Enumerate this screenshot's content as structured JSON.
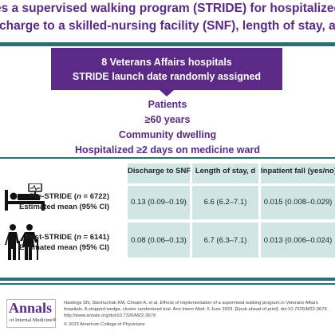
{
  "title": {
    "line1": "es a supervised walking program (STRIDE) for hospitalized patients redu",
    "line2": "charge to a skilled-nursing facility (SNF), length of stay, and in-hospital fal"
  },
  "launch_box": {
    "line1": "8 Veterans Affairs hospitals",
    "line2": "STRIDE launch date randomly assigned"
  },
  "patients": {
    "heading": "Patients",
    "criteria": [
      "≥60 years",
      "Community dwelling",
      "Hospitalized ≥2 days on medicine ward"
    ]
  },
  "table": {
    "columns": [
      "Discharge to SNF",
      "Length of stay, d",
      "Inpatient fall (yes/no)"
    ],
    "rows": [
      {
        "label_prefix": "Pre-STRIDE (",
        "label_n": "n",
        "label_suffix": " = 6722)",
        "sublabel": "Estimated mean (95% CI)",
        "icon": "hospital-bed-icon",
        "values": [
          "0.13 (0.09–0.19)",
          "6.6 (6.2–7.1)",
          "0.015 (0.008–0.029)"
        ]
      },
      {
        "label_prefix": "Post-STRIDE (",
        "label_n": "n",
        "label_suffix": " = 6141)",
        "sublabel": "Estimated mean (95% CI)",
        "icon": "walking-people-icon",
        "values": [
          "0.08 (0.06–0.13)",
          "6.7 (6.3–7.1)",
          "0.013 (0.006–0.024)"
        ]
      }
    ]
  },
  "footer": {
    "logo_main": "Annals",
    "logo_sub": "of Internal Medicine®",
    "citation": "Hastings SN, Stechuchak KM, Choate A, et al. Effects of implementation of a supervised walking program in Veterans Affairs hospitals. A stepped-wedge, cluster randomized trial. Ann Intern Med. 6 June 2023. [Epub ahead of print]. doi:10.7326/M22-3679",
    "citation_url": "http://www.annals.org/doi/10.7326/M22-3679",
    "copyright": "© 2023 American College of Physicians"
  },
  "colors": {
    "purple": "#5b2a86",
    "teal": "#2a6f73",
    "table_fill": "#cfe6e5"
  }
}
